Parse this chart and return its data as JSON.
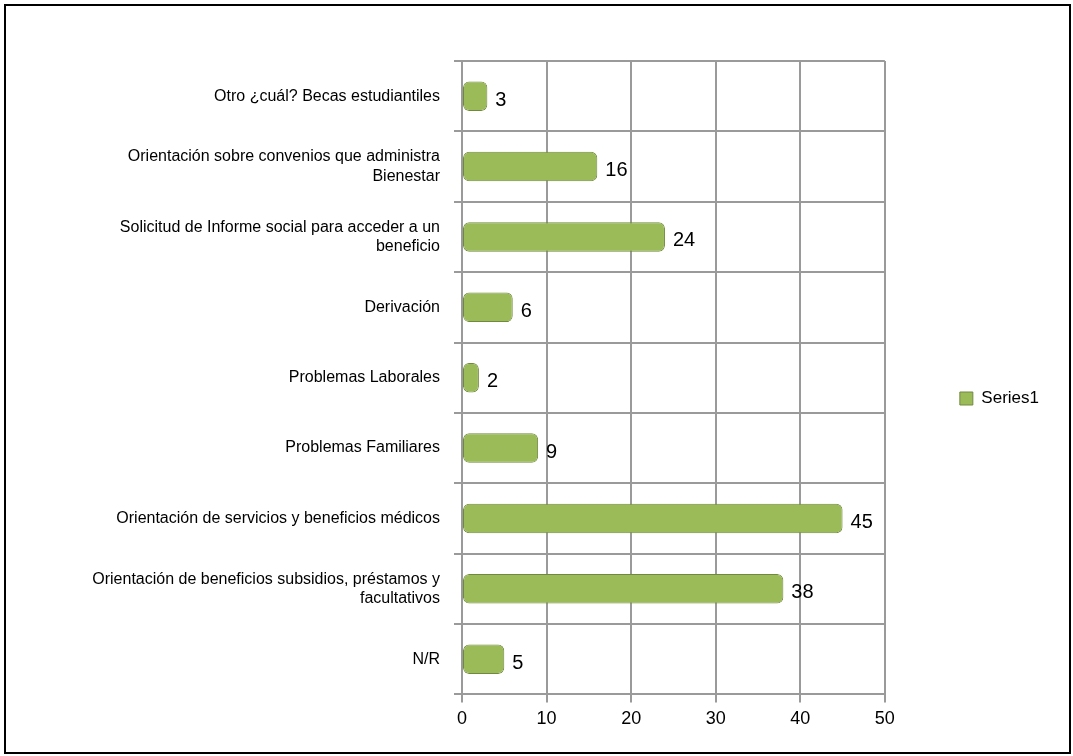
{
  "chart_data": {
    "type": "bar",
    "orientation": "horizontal",
    "categories": [
      "Otro ¿cuál? Becas estudiantiles",
      "Orientación sobre convenios que administra Bienestar",
      "Solicitud de Informe social para acceder a un beneficio",
      "Derivación",
      "Problemas Laborales",
      "Problemas Familiares",
      "Orientación de servicios y beneficios médicos",
      "Orientación de beneficios subsidios, préstamos y facultativos",
      "N/R"
    ],
    "series": [
      {
        "name": "Series1",
        "color": "#9bbb59",
        "values": [
          3,
          16,
          24,
          6,
          2,
          9,
          45,
          38,
          5
        ]
      }
    ],
    "xlim": [
      0,
      50
    ],
    "xticks": [
      0,
      10,
      20,
      30,
      40,
      50
    ],
    "grid": true,
    "legend": "right",
    "data_labels": true
  }
}
